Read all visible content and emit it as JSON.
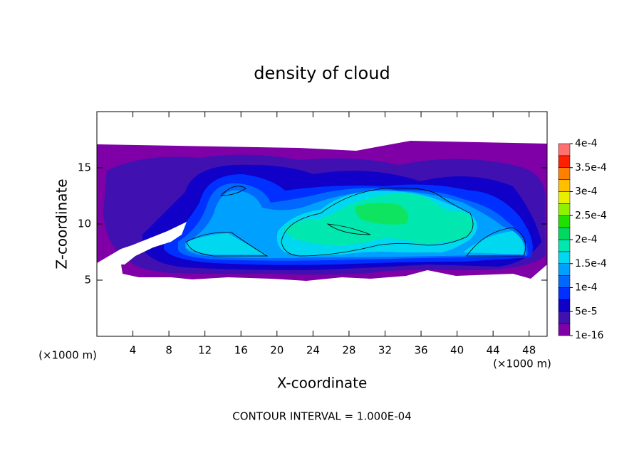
{
  "chart_data": {
    "type": "contour",
    "title": "density of cloud",
    "xlabel": "X-coordinate",
    "ylabel": "Z-coordinate",
    "x_unit_label": "(×1000 m)",
    "y_unit_label": "(×1000 m)",
    "footer": "CONTOUR INTERVAL = 1.000E-04",
    "xlim": [
      0,
      50
    ],
    "xticks": [
      4,
      8,
      12,
      16,
      20,
      24,
      28,
      32,
      36,
      40,
      44,
      48
    ],
    "ylim": [
      0,
      20
    ],
    "yticks": [
      5,
      10,
      15
    ],
    "colorbar": {
      "lim": [
        1e-16,
        0.0004
      ],
      "colors": [
        "#8000a8",
        "#4010b0",
        "#1000c8",
        "#0030ff",
        "#0068ff",
        "#00a0ff",
        "#00d8f0",
        "#00e8b0",
        "#00d860",
        "#20e000",
        "#90f000",
        "#e8f000",
        "#ffc000",
        "#ff8000",
        "#ff2000",
        "#ff7070"
      ],
      "ticks": [
        {
          "value": 1e-16,
          "label": "1e-16"
        },
        {
          "value": 5e-05,
          "label": "5e-5"
        },
        {
          "value": 0.0001,
          "label": "1e-4"
        },
        {
          "value": 0.00015,
          "label": "1.5e-4"
        },
        {
          "value": 0.0002,
          "label": "2e-4"
        },
        {
          "value": 0.00025,
          "label": "2.5e-4"
        },
        {
          "value": 0.0003,
          "label": "3e-4"
        },
        {
          "value": 0.00035,
          "label": "3.5e-4"
        },
        {
          "value": 0.0004,
          "label": "4e-4"
        }
      ]
    }
  }
}
